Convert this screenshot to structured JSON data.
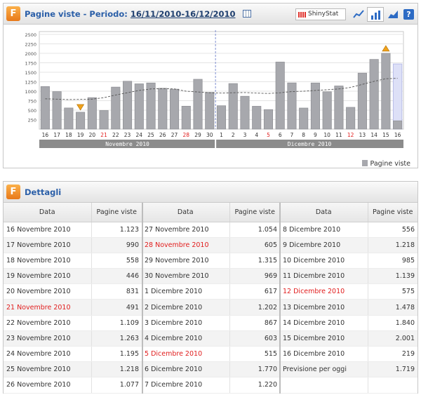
{
  "top": {
    "title_prefix": "Pagine viste - Periodo:",
    "period": "16/11/2010-16/12/2010",
    "brand": "ShinyStat",
    "help": "?",
    "logo": "F"
  },
  "chart_data": {
    "type": "bar",
    "yticks": [
      250,
      500,
      750,
      1000,
      1250,
      1500,
      1750,
      2000,
      2250,
      2500
    ],
    "ylim": [
      0,
      2500
    ],
    "categories": [
      "16",
      "17",
      "18",
      "19",
      "20",
      "21",
      "22",
      "23",
      "24",
      "25",
      "26",
      "27",
      "28",
      "29",
      "30",
      "1",
      "2",
      "3",
      "4",
      "5",
      "6",
      "7",
      "8",
      "9",
      "10",
      "11",
      "12",
      "13",
      "14",
      "15",
      "16"
    ],
    "values": [
      1123,
      990,
      558,
      446,
      831,
      491,
      1109,
      1263,
      1195,
      1218,
      1077,
      1054,
      605,
      1315,
      969,
      617,
      1202,
      867,
      603,
      515,
      1770,
      1220,
      556,
      1218,
      985,
      1139,
      575,
      1478,
      1840,
      2001,
      219
    ],
    "forecast_today": 1719,
    "trend": [
      800,
      790,
      780,
      785,
      790,
      830,
      900,
      960,
      1020,
      1060,
      1070,
      1060,
      1000,
      980,
      960,
      950,
      960,
      965,
      950,
      940,
      960,
      990,
      1000,
      1020,
      1040,
      1060,
      1100,
      1180,
      1260,
      1330,
      1340
    ],
    "red_indices": [
      5,
      12,
      19,
      26
    ],
    "min_marker_index": 3,
    "max_marker_index": 29,
    "months": [
      "Novembre 2010",
      "Dicembre 2010"
    ],
    "legend": "Pagine viste"
  },
  "details": {
    "title": "Dettagli",
    "col_date": "Data",
    "col_views": "Pagine viste",
    "columns": [
      [
        {
          "date": "16 Novembre 2010",
          "value": "1.123",
          "red": false
        },
        {
          "date": "17 Novembre 2010",
          "value": "990",
          "red": false
        },
        {
          "date": "18 Novembre 2010",
          "value": "558",
          "red": false
        },
        {
          "date": "19 Novembre 2010",
          "value": "446",
          "red": false
        },
        {
          "date": "20 Novembre 2010",
          "value": "831",
          "red": false
        },
        {
          "date": "21 Novembre 2010",
          "value": "491",
          "red": true
        },
        {
          "date": "22 Novembre 2010",
          "value": "1.109",
          "red": false
        },
        {
          "date": "23 Novembre 2010",
          "value": "1.263",
          "red": false
        },
        {
          "date": "24 Novembre 2010",
          "value": "1.195",
          "red": false
        },
        {
          "date": "25 Novembre 2010",
          "value": "1.218",
          "red": false
        },
        {
          "date": "26 Novembre 2010",
          "value": "1.077",
          "red": false
        }
      ],
      [
        {
          "date": "27 Novembre 2010",
          "value": "1.054",
          "red": false
        },
        {
          "date": "28 Novembre 2010",
          "value": "605",
          "red": true
        },
        {
          "date": "29 Novembre 2010",
          "value": "1.315",
          "red": false
        },
        {
          "date": "30 Novembre 2010",
          "value": "969",
          "red": false
        },
        {
          "date": "1 Dicembre 2010",
          "value": "617",
          "red": false
        },
        {
          "date": "2 Dicembre 2010",
          "value": "1.202",
          "red": false
        },
        {
          "date": "3 Dicembre 2010",
          "value": "867",
          "red": false
        },
        {
          "date": "4 Dicembre 2010",
          "value": "603",
          "red": false
        },
        {
          "date": "5 Dicembre 2010",
          "value": "515",
          "red": true
        },
        {
          "date": "6 Dicembre 2010",
          "value": "1.770",
          "red": false
        },
        {
          "date": "7 Dicembre 2010",
          "value": "1.220",
          "red": false
        }
      ],
      [
        {
          "date": "8 Dicembre 2010",
          "value": "556",
          "red": false
        },
        {
          "date": "9 Dicembre 2010",
          "value": "1.218",
          "red": false
        },
        {
          "date": "10 Dicembre 2010",
          "value": "985",
          "red": false
        },
        {
          "date": "11 Dicembre 2010",
          "value": "1.139",
          "red": false
        },
        {
          "date": "12 Dicembre 2010",
          "value": "575",
          "red": true
        },
        {
          "date": "13 Dicembre 2010",
          "value": "1.478",
          "red": false
        },
        {
          "date": "14 Dicembre 2010",
          "value": "1.840",
          "red": false
        },
        {
          "date": "15 Dicembre 2010",
          "value": "2.001",
          "red": false
        },
        {
          "date": "16 Dicembre 2010",
          "value": "219",
          "red": false
        },
        {
          "date": "Previsione per oggi",
          "value": "1.719",
          "red": false
        },
        {
          "date": "",
          "value": "",
          "red": false
        }
      ]
    ]
  },
  "colors": {
    "bar": "#a7a8ad",
    "bar_edge": "#8e8f94",
    "forecast": "#dde0f7",
    "title_blue": "#2b5fa8",
    "weekend_red": "#e11d1d",
    "month_band": "#8b8b8b"
  },
  "icons": [
    "logo-f-icon",
    "calendar-icon",
    "line-chart-icon",
    "bar-chart-icon",
    "area-chart-icon",
    "help-icon",
    "down-triangle-icon",
    "up-triangle-icon"
  ]
}
